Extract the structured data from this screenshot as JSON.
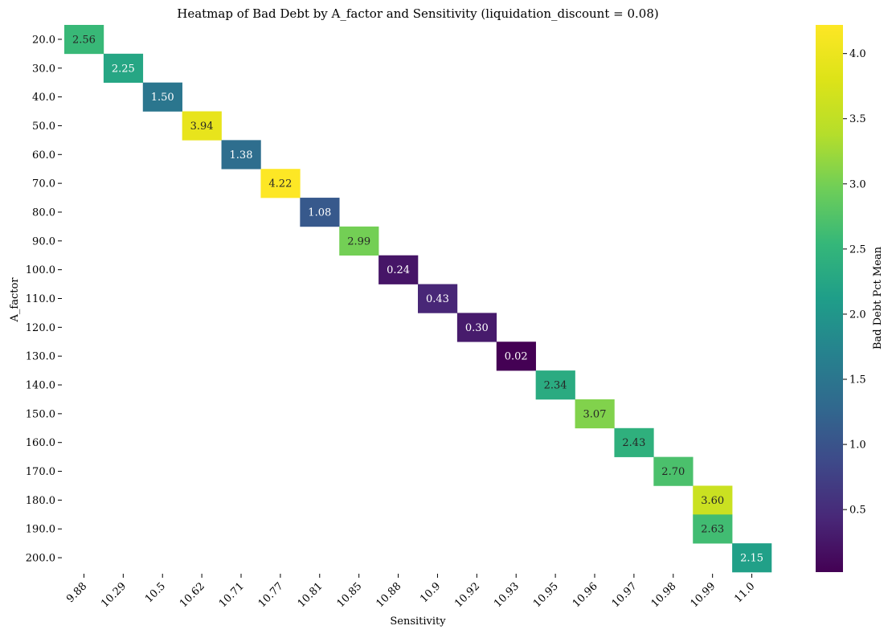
{
  "chart_data": {
    "type": "heatmap",
    "title": "Heatmap of Bad Debt by A_factor and Sensitivity (liquidation_discount = 0.08)",
    "xlabel": "Sensitivity",
    "ylabel": "A_factor",
    "x_categories": [
      "9.88",
      "10.29",
      "10.5",
      "10.62",
      "10.71",
      "10.77",
      "10.81",
      "10.85",
      "10.88",
      "10.9",
      "10.92",
      "10.93",
      "10.95",
      "10.96",
      "10.97",
      "10.98",
      "10.99",
      "11.0"
    ],
    "y_categories": [
      "20.0",
      "30.0",
      "40.0",
      "50.0",
      "60.0",
      "70.0",
      "80.0",
      "90.0",
      "100.0",
      "110.0",
      "120.0",
      "130.0",
      "140.0",
      "150.0",
      "160.0",
      "170.0",
      "180.0",
      "190.0",
      "200.0"
    ],
    "cells": [
      {
        "x": "9.88",
        "y": "20.0",
        "value": 2.56,
        "label": "2.56"
      },
      {
        "x": "10.29",
        "y": "30.0",
        "value": 2.25,
        "label": "2.25"
      },
      {
        "x": "10.5",
        "y": "40.0",
        "value": 1.5,
        "label": "1.50"
      },
      {
        "x": "10.62",
        "y": "50.0",
        "value": 3.94,
        "label": "3.94"
      },
      {
        "x": "10.71",
        "y": "60.0",
        "value": 1.38,
        "label": "1.38"
      },
      {
        "x": "10.77",
        "y": "70.0",
        "value": 4.22,
        "label": "4.22"
      },
      {
        "x": "10.81",
        "y": "80.0",
        "value": 1.08,
        "label": "1.08"
      },
      {
        "x": "10.85",
        "y": "90.0",
        "value": 2.99,
        "label": "2.99"
      },
      {
        "x": "10.88",
        "y": "100.0",
        "value": 0.24,
        "label": "0.24"
      },
      {
        "x": "10.9",
        "y": "110.0",
        "value": 0.43,
        "label": "0.43"
      },
      {
        "x": "10.92",
        "y": "120.0",
        "value": 0.3,
        "label": "0.30"
      },
      {
        "x": "10.93",
        "y": "130.0",
        "value": 0.02,
        "label": "0.02"
      },
      {
        "x": "10.95",
        "y": "140.0",
        "value": 2.34,
        "label": "2.34"
      },
      {
        "x": "10.96",
        "y": "150.0",
        "value": 3.07,
        "label": "3.07"
      },
      {
        "x": "10.97",
        "y": "160.0",
        "value": 2.43,
        "label": "2.43"
      },
      {
        "x": "10.98",
        "y": "170.0",
        "value": 2.7,
        "label": "2.70"
      },
      {
        "x": "10.99",
        "y": "180.0",
        "value": 3.6,
        "label": "3.60"
      },
      {
        "x": "10.99",
        "y": "190.0",
        "value": 2.63,
        "label": "2.63"
      },
      {
        "x": "11.0",
        "y": "200.0",
        "value": 2.15,
        "label": "2.15"
      }
    ],
    "colorbar": {
      "label": "Bad Debt Pct Mean",
      "colormap": "viridis",
      "vmin": 0.02,
      "vmax": 4.22,
      "ticks": [
        0.5,
        1.0,
        1.5,
        2.0,
        2.5,
        3.0,
        3.5,
        4.0
      ],
      "tick_labels": [
        "0.5",
        "1.0",
        "1.5",
        "2.0",
        "2.5",
        "3.0",
        "3.5",
        "4.0"
      ]
    }
  }
}
